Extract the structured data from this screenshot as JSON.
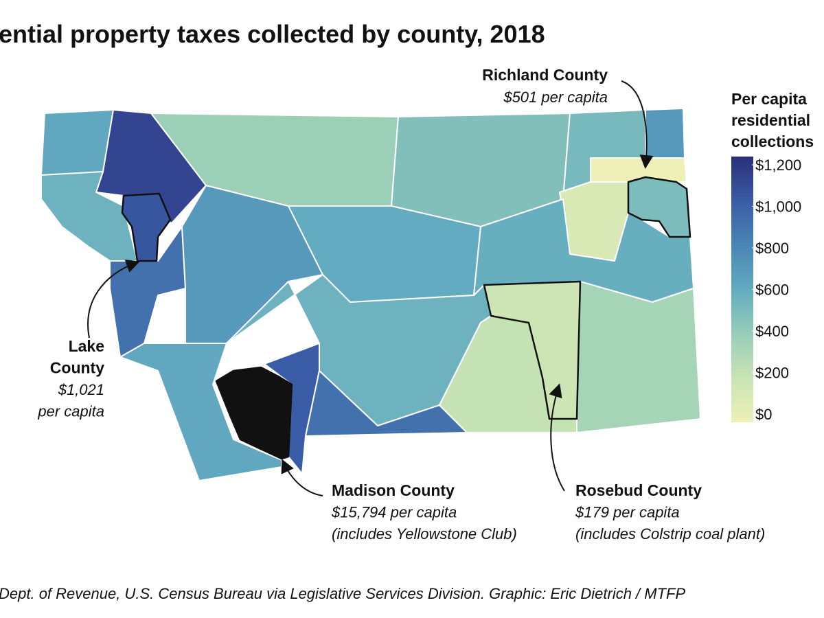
{
  "title": "ential property taxes collected by county, 2018",
  "map": {
    "region_values": [
      620,
      1100,
      560,
      900,
      700,
      620,
      1000,
      380,
      480,
      600,
      560,
      900,
      520,
      120,
      700,
      580,
      220,
      340
    ],
    "annotations": [
      {
        "value": 501,
        "lines": [
          "Richland County",
          "$501 per capita"
        ]
      },
      {
        "value": 1021,
        "lines": [
          "Lake",
          "County",
          "$1,021",
          "per capita"
        ]
      },
      {
        "value": 15794,
        "lines": [
          "Madison County",
          "$15,794 per capita",
          "(includes Yellowstone Club)"
        ]
      },
      {
        "value": 179,
        "lines": [
          "Rosebud County",
          "$179 per capita",
          "(includes Colstrip coal plant)"
        ]
      }
    ],
    "colorscale": [
      {
        "value": 0,
        "color": "#eef0b8"
      },
      {
        "value": 200,
        "color": "#c9e4b4"
      },
      {
        "value": 400,
        "color": "#97cdb8"
      },
      {
        "value": 600,
        "color": "#62abc0"
      },
      {
        "value": 800,
        "color": "#4a86b5"
      },
      {
        "value": 1000,
        "color": "#3a5ba5"
      },
      {
        "value": 1200,
        "color": "#2b2f7a"
      }
    ],
    "overflow_color": "#111111",
    "legend": {
      "title_lines": [
        "Per capita",
        "residential",
        "collections"
      ],
      "ticks": [
        {
          "value": 1200,
          "label": "$1,200"
        },
        {
          "value": 1000,
          "label": "$1,000"
        },
        {
          "value": 800,
          "label": "$800"
        },
        {
          "value": 600,
          "label": "$600"
        },
        {
          "value": 400,
          "label": "$400"
        },
        {
          "value": 200,
          "label": "$200"
        },
        {
          "value": 0,
          "label": "$0"
        }
      ]
    }
  },
  "source": "Dept. of Revenue, U.S. Census Bureau via Legislative Services Division. Graphic: Eric Dietrich / MTFP"
}
